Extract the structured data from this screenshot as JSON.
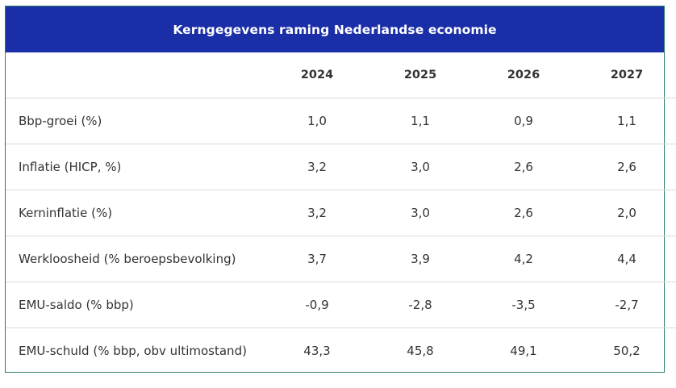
{
  "table": {
    "title": "Kerngegevens raming Nederlandse economie",
    "years": [
      "2024",
      "2025",
      "2026",
      "2027"
    ],
    "rows": [
      {
        "label": "Bbp-groei (%)",
        "values": [
          "1,0",
          "1,1",
          "0,9",
          "1,1"
        ]
      },
      {
        "label": "Inflatie (HICP, %)",
        "values": [
          "3,2",
          "3,0",
          "2,6",
          "2,6"
        ]
      },
      {
        "label": "Kerninflatie (%)",
        "values": [
          "3,2",
          "3,0",
          "2,6",
          "2,0"
        ]
      },
      {
        "label": "Werkloosheid (% beroepsbevolking)",
        "values": [
          "3,7",
          "3,9",
          "4,2",
          "4,4"
        ]
      },
      {
        "label": "EMU-saldo (% bbp)",
        "values": [
          "-0,9",
          "-2,8",
          "-3,5",
          "-2,7"
        ]
      },
      {
        "label": "EMU-schuld (% bbp, obv ultimostand)",
        "values": [
          "43,3",
          "45,8",
          "49,1",
          "50,2"
        ]
      }
    ],
    "colors": {
      "header_background": "#1a2ea8",
      "header_text": "#ffffff",
      "border": "#2e7d68",
      "row_divider": "#d9d9d9",
      "text": "#333333"
    }
  }
}
